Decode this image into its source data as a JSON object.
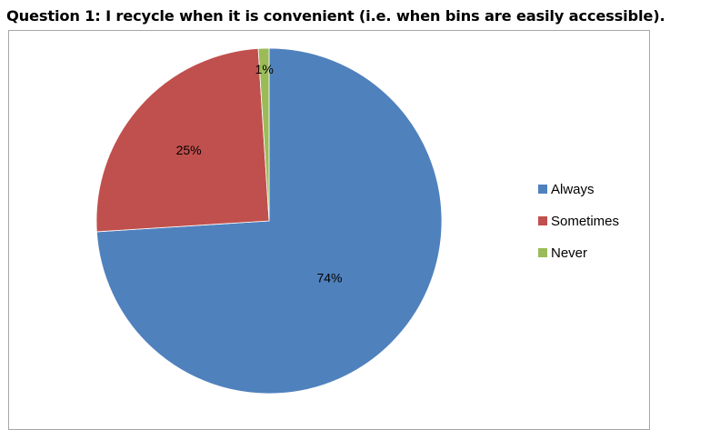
{
  "chart_data": {
    "type": "pie",
    "title": "Question 1: I recycle when it is convenient (i.e. when bins are easily accessible).",
    "categories": [
      "Always",
      "Sometimes",
      "Never"
    ],
    "values": [
      74,
      25,
      1
    ],
    "data_labels": [
      "74%",
      "25%",
      "1%"
    ],
    "colors": [
      "#4f81bd",
      "#c0504d",
      "#9bbb59"
    ],
    "legend_position": "right",
    "start_angle": "12 o'clock",
    "direction": "clockwise"
  }
}
